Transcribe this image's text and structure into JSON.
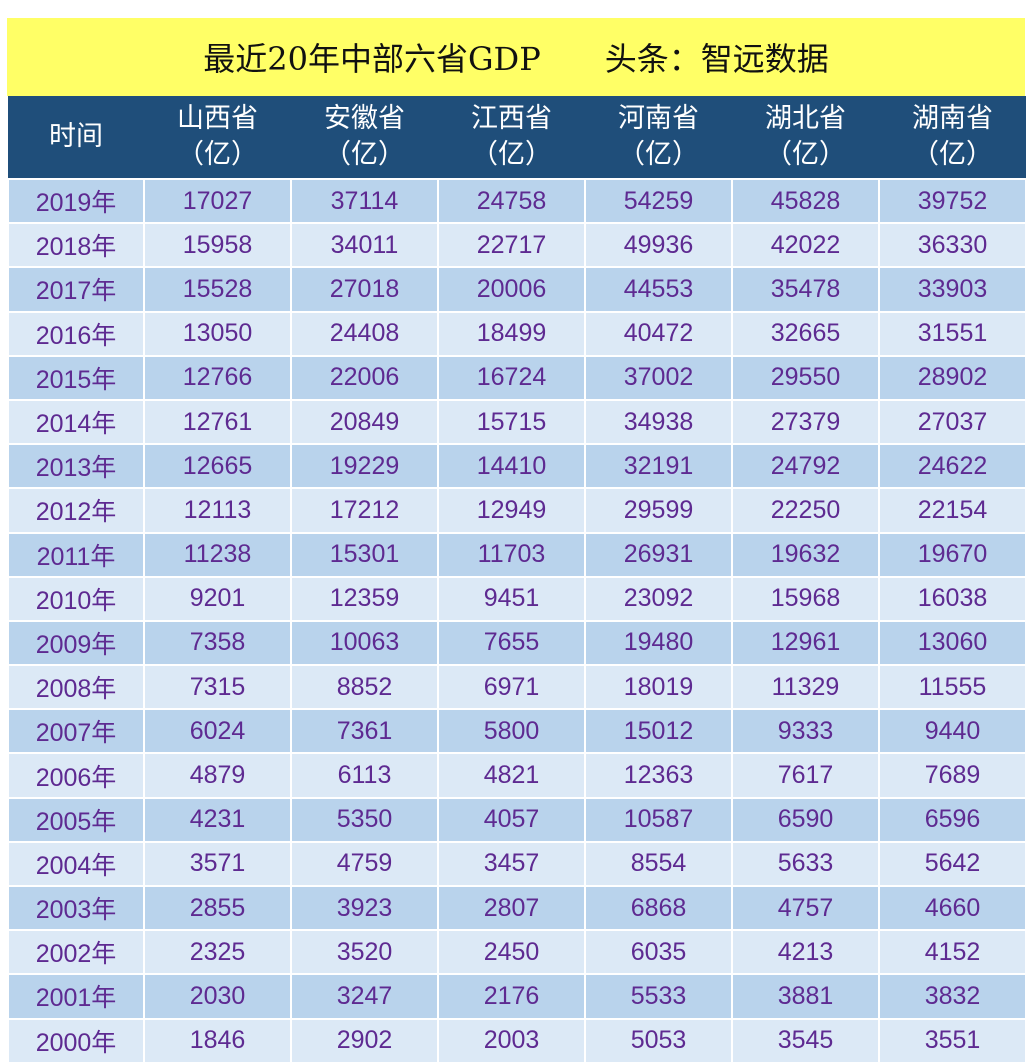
{
  "title": "最近20年中部六省GDP　　头条：智远数据",
  "table": {
    "headers": [
      {
        "name": "时间",
        "unit": ""
      },
      {
        "name": "山西省",
        "unit": "（亿）"
      },
      {
        "name": "安徽省",
        "unit": "（亿）"
      },
      {
        "name": "江西省",
        "unit": "（亿）"
      },
      {
        "name": "河南省",
        "unit": "（亿）"
      },
      {
        "name": "湖北省",
        "unit": "（亿）"
      },
      {
        "name": "湖南省",
        "unit": "（亿）"
      }
    ],
    "rows": [
      [
        "2019年",
        "17027",
        "37114",
        "24758",
        "54259",
        "45828",
        "39752"
      ],
      [
        "2018年",
        "15958",
        "34011",
        "22717",
        "49936",
        "42022",
        "36330"
      ],
      [
        "2017年",
        "15528",
        "27018",
        "20006",
        "44553",
        "35478",
        "33903"
      ],
      [
        "2016年",
        "13050",
        "24408",
        "18499",
        "40472",
        "32665",
        "31551"
      ],
      [
        "2015年",
        "12766",
        "22006",
        "16724",
        "37002",
        "29550",
        "28902"
      ],
      [
        "2014年",
        "12761",
        "20849",
        "15715",
        "34938",
        "27379",
        "27037"
      ],
      [
        "2013年",
        "12665",
        "19229",
        "14410",
        "32191",
        "24792",
        "24622"
      ],
      [
        "2012年",
        "12113",
        "17212",
        "12949",
        "29599",
        "22250",
        "22154"
      ],
      [
        "2011年",
        "11238",
        "15301",
        "11703",
        "26931",
        "19632",
        "19670"
      ],
      [
        "2010年",
        "9201",
        "12359",
        "9451",
        "23092",
        "15968",
        "16038"
      ],
      [
        "2009年",
        "7358",
        "10063",
        "7655",
        "19480",
        "12961",
        "13060"
      ],
      [
        "2008年",
        "7315",
        "8852",
        "6971",
        "18019",
        "11329",
        "11555"
      ],
      [
        "2007年",
        "6024",
        "7361",
        "5800",
        "15012",
        "9333",
        "9440"
      ],
      [
        "2006年",
        "4879",
        "6113",
        "4821",
        "12363",
        "7617",
        "7689"
      ],
      [
        "2005年",
        "4231",
        "5350",
        "4057",
        "10587",
        "6590",
        "6596"
      ],
      [
        "2004年",
        "3571",
        "4759",
        "3457",
        "8554",
        "5633",
        "5642"
      ],
      [
        "2003年",
        "2855",
        "3923",
        "2807",
        "6868",
        "4757",
        "4660"
      ],
      [
        "2002年",
        "2325",
        "3520",
        "2450",
        "6035",
        "4213",
        "4152"
      ],
      [
        "2001年",
        "2030",
        "3247",
        "2176",
        "5533",
        "3881",
        "3832"
      ],
      [
        "2000年",
        "1846",
        "2902",
        "2003",
        "5053",
        "3545",
        "3551"
      ]
    ]
  },
  "colors": {
    "title_bg": "#ffff66",
    "header_bg": "#1f4e7a",
    "row_odd": "#b9d3ec",
    "row_even": "#dce9f6",
    "cell_text": "#5e2a91"
  }
}
